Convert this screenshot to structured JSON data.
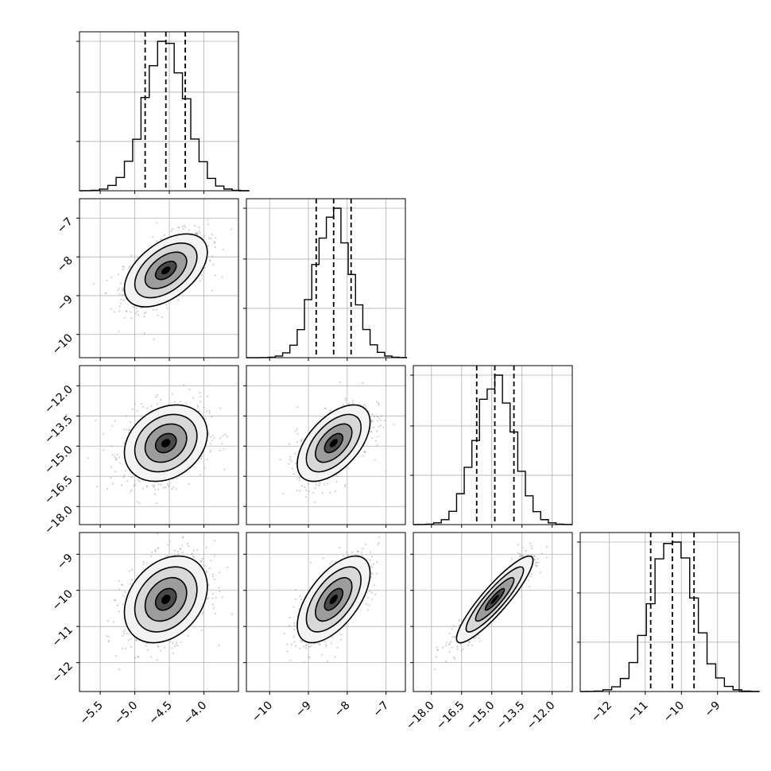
{
  "chart_data": {
    "type": "corner",
    "params": [
      {
        "mean": -4.55,
        "std": 0.3,
        "q16": -4.85,
        "q50": -4.55,
        "q84": -4.27,
        "lim": [
          -5.8,
          -3.5
        ],
        "ticks": [
          -5.5,
          -5.0,
          -4.5,
          -4.0
        ],
        "tick_labels": [
          "−5.5",
          "−5.0",
          "−4.5",
          "−4.0"
        ]
      },
      {
        "mean": -8.35,
        "std": 0.47,
        "q16": -8.8,
        "q50": -8.35,
        "q84": -7.9,
        "lim": [
          -10.6,
          -6.5
        ],
        "ticks": [
          -10,
          -9,
          -8,
          -7
        ],
        "tick_labels": [
          "−10",
          "−9",
          "−8",
          "−7"
        ]
      },
      {
        "mean": -14.85,
        "std": 0.95,
        "q16": -15.75,
        "q50": -14.85,
        "q84": -13.9,
        "lim": [
          -18.9,
          -11.0
        ],
        "ticks": [
          -18.0,
          -16.5,
          -15.0,
          -13.5,
          -12.0
        ],
        "tick_labels": [
          "−18.0",
          "−16.5",
          "−15.0",
          "−13.5",
          "−12.0"
        ]
      },
      {
        "mean": -10.25,
        "std": 0.6,
        "q16": -10.85,
        "q50": -10.25,
        "q84": -9.65,
        "lim": [
          -12.8,
          -8.4
        ],
        "ticks": [
          -12,
          -11,
          -10,
          -9
        ],
        "tick_labels": [
          "−12",
          "−11",
          "−10",
          "−9"
        ]
      }
    ],
    "correlations": [
      [
        1.0,
        0.5,
        0.25,
        0.3
      ],
      [
        0.5,
        1.0,
        0.55,
        0.6
      ],
      [
        0.25,
        0.55,
        1.0,
        0.9
      ],
      [
        0.3,
        0.6,
        0.9,
        1.0
      ]
    ],
    "contour_levels_sigma": [
      0.5,
      1.0,
      1.5,
      2.0
    ],
    "grid": true
  }
}
